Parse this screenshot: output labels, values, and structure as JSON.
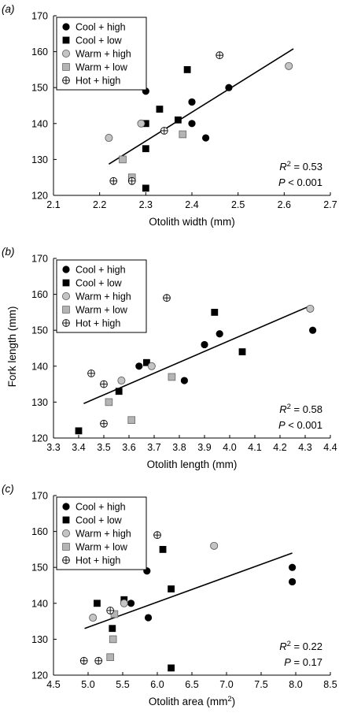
{
  "figure_ylabel": "Fork length (mm)",
  "chart_data": [
    {
      "panel": "(a)",
      "type": "scatter",
      "xlabel": "Otolith width (mm)",
      "xlim": [
        2.1,
        2.7
      ],
      "xticks": [
        "2.1",
        "2.2",
        "2.3",
        "2.4",
        "2.5",
        "2.6",
        "2.7"
      ],
      "ylim": [
        120,
        170
      ],
      "yticks": [
        "120",
        "130",
        "140",
        "150",
        "160",
        "170"
      ],
      "legend_position": "top-left",
      "stats": [
        "R² = 0.53",
        "P < 0.001"
      ],
      "trendline": {
        "x": [
          2.22,
          2.62
        ],
        "y": [
          128.7,
          160.8
        ]
      },
      "series": [
        {
          "name": "Cool + high",
          "marker": "circle-black",
          "points": [
            [
              2.3,
              149
            ],
            [
              2.4,
              146
            ],
            [
              2.48,
              150
            ],
            [
              2.4,
              140
            ],
            [
              2.43,
              136
            ]
          ]
        },
        {
          "name": "Cool + low",
          "marker": "square-black",
          "points": [
            [
              2.39,
              155
            ],
            [
              2.33,
              144
            ],
            [
              2.3,
              140
            ],
            [
              2.37,
              141
            ],
            [
              2.3,
              133
            ],
            [
              2.3,
              122
            ]
          ]
        },
        {
          "name": "Warm + high",
          "marker": "circle-grey",
          "points": [
            [
              2.61,
              156
            ],
            [
              2.29,
              140
            ],
            [
              2.22,
              136
            ]
          ]
        },
        {
          "name": "Warm + low",
          "marker": "square-grey",
          "points": [
            [
              2.38,
              137
            ],
            [
              2.25,
              130
            ],
            [
              2.27,
              125
            ]
          ]
        },
        {
          "name": "Hot + high",
          "marker": "crosscircle",
          "points": [
            [
              2.46,
              159
            ],
            [
              2.34,
              138
            ],
            [
              2.23,
              124
            ],
            [
              2.27,
              124
            ]
          ]
        }
      ]
    },
    {
      "panel": "(b)",
      "type": "scatter",
      "xlabel": "Otolith length (mm)",
      "xlim": [
        3.3,
        4.4
      ],
      "xticks": [
        "3.3",
        "3.4",
        "3.5",
        "3.6",
        "3.7",
        "3.8",
        "3.9",
        "4.0",
        "4.1",
        "4.2",
        "4.3",
        "4.4"
      ],
      "ylim": [
        120,
        170
      ],
      "yticks": [
        "120",
        "130",
        "140",
        "150",
        "160",
        "170"
      ],
      "legend_position": "top-left",
      "stats": [
        "R² = 0.58",
        "P < 0.001"
      ],
      "trendline": {
        "x": [
          3.42,
          4.32
        ],
        "y": [
          129.6,
          156.8
        ]
      },
      "series": [
        {
          "name": "Cool + high",
          "marker": "circle-black",
          "points": [
            [
              4.33,
              150
            ],
            [
              3.96,
              149
            ],
            [
              3.9,
              146
            ],
            [
              3.64,
              140
            ],
            [
              3.82,
              136
            ]
          ]
        },
        {
          "name": "Cool + low",
          "marker": "square-black",
          "points": [
            [
              3.94,
              155
            ],
            [
              4.05,
              144
            ],
            [
              3.67,
              141
            ],
            [
              3.56,
              133
            ],
            [
              3.4,
              122
            ]
          ]
        },
        {
          "name": "Warm + high",
          "marker": "circle-grey",
          "points": [
            [
              4.32,
              156
            ],
            [
              3.69,
              140
            ],
            [
              3.57,
              136
            ]
          ]
        },
        {
          "name": "Warm + low",
          "marker": "square-grey",
          "points": [
            [
              3.77,
              137
            ],
            [
              3.52,
              130
            ],
            [
              3.61,
              125
            ]
          ]
        },
        {
          "name": "Hot + high",
          "marker": "crosscircle",
          "points": [
            [
              3.75,
              159
            ],
            [
              3.45,
              138
            ],
            [
              3.5,
              135
            ],
            [
              3.5,
              124
            ]
          ]
        }
      ]
    },
    {
      "panel": "(c)",
      "type": "scatter",
      "xlabel": "Otolith area (mm²)",
      "xlim": [
        4.5,
        8.5
      ],
      "xticks": [
        "4.5",
        "5.0",
        "5.5",
        "6.0",
        "6.5",
        "7.0",
        "7.5",
        "8.0",
        "8.5"
      ],
      "ylim": [
        120,
        170
      ],
      "yticks": [
        "120",
        "130",
        "140",
        "150",
        "160",
        "170"
      ],
      "legend_position": "top-left",
      "stats": [
        "R² = 0.22",
        "P = 0.17"
      ],
      "trendline": {
        "x": [
          4.95,
          7.95
        ],
        "y": [
          133.0,
          154.0
        ]
      },
      "series": [
        {
          "name": "Cool + high",
          "marker": "circle-black",
          "points": [
            [
              5.85,
              149
            ],
            [
              7.95,
              150
            ],
            [
              7.95,
              146
            ],
            [
              5.62,
              140
            ],
            [
              5.87,
              136
            ]
          ]
        },
        {
          "name": "Cool + low",
          "marker": "square-black",
          "points": [
            [
              6.08,
              155
            ],
            [
              6.2,
              144
            ],
            [
              5.52,
              141
            ],
            [
              5.13,
              140
            ],
            [
              5.35,
              133
            ],
            [
              6.2,
              122
            ]
          ]
        },
        {
          "name": "Warm + high",
          "marker": "circle-grey",
          "points": [
            [
              6.82,
              156
            ],
            [
              5.52,
              140
            ],
            [
              5.07,
              136
            ]
          ]
        },
        {
          "name": "Warm + low",
          "marker": "square-grey",
          "points": [
            [
              5.38,
              137
            ],
            [
              5.36,
              130
            ],
            [
              5.32,
              125
            ]
          ]
        },
        {
          "name": "Hot + high",
          "marker": "crosscircle",
          "points": [
            [
              6.0,
              159
            ],
            [
              5.32,
              138
            ],
            [
              4.94,
              124
            ],
            [
              5.15,
              124
            ]
          ]
        }
      ]
    }
  ]
}
